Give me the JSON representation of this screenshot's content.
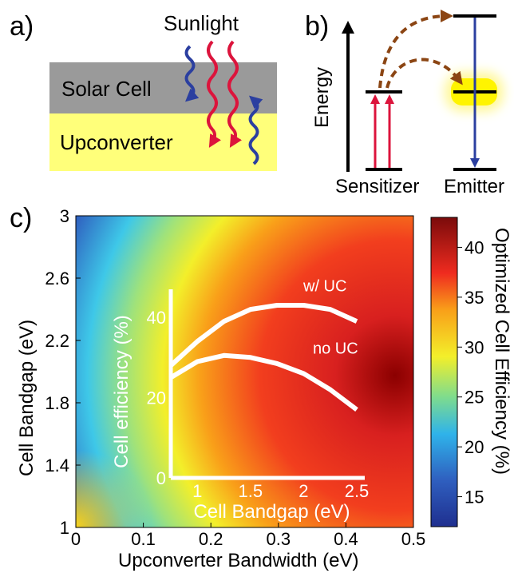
{
  "panel_a": {
    "letter": "a)",
    "sunlight_label": "Sunlight",
    "solar_cell_label": "Solar Cell",
    "upconverter_label": "Upconverter"
  },
  "panel_b": {
    "letter": "b)",
    "energy_label": "Energy",
    "sensitizer_label": "Sensitizer",
    "emitter_label": "Emitter"
  },
  "panel_c": {
    "letter": "c)",
    "xlabel": "Upconverter Bandwidth (eV)",
    "ylabel": "Cell Bandgap (eV)",
    "colorbar_label": "Optimized Cell Efficiency (%)",
    "inset_xlabel": "Cell Bandgap (eV)",
    "inset_ylabel": "Cell efficiency (%)",
    "inset_series_label_uc": "w/ UC",
    "inset_series_label_no_uc": "no UC"
  },
  "colors": {
    "red_photon": "#dc143c",
    "blue_photon": "#2b3fa0",
    "solar_cell": "#9a9a9a",
    "upconverter": "#ffff7a",
    "transfer_arrow": "#8b4513",
    "emitter_glow": "#fff400"
  },
  "chart_data": [
    {
      "type": "heatmap",
      "xlabel": "Upconverter Bandwidth (eV)",
      "ylabel": "Cell Bandgap (eV)",
      "xlim": [
        0,
        0.5
      ],
      "ylim": [
        1,
        3
      ],
      "x_ticks": [
        "0",
        "0.1",
        "0.2",
        "0.3",
        "0.4",
        "0.5"
      ],
      "y_ticks": [
        "1",
        "1.4",
        "1.8",
        "2.2",
        "2.6",
        "3"
      ],
      "colorbar": {
        "label": "Optimized Cell Efficiency (%)",
        "range": [
          12,
          43
        ],
        "ticks": [
          "15",
          "20",
          "25",
          "30",
          "35",
          "40"
        ]
      }
    },
    {
      "type": "line",
      "xlabel": "Cell Bandgap (eV)",
      "ylabel": "Cell efficiency (%)",
      "xlim": [
        0.75,
        2.5
      ],
      "ylim": [
        0,
        45
      ],
      "x_ticks": [
        "1",
        "1.5",
        "2",
        "2.5"
      ],
      "y_ticks": [
        "0",
        "20",
        "40"
      ],
      "series": [
        {
          "name": "w/ UC",
          "x": [
            0.75,
            1.0,
            1.25,
            1.5,
            1.75,
            2.0,
            2.25,
            2.5
          ],
          "values": [
            28,
            34,
            39,
            42,
            43,
            43,
            42,
            39
          ]
        },
        {
          "name": "no UC",
          "x": [
            0.75,
            1.0,
            1.25,
            1.5,
            1.75,
            2.0,
            2.25,
            2.5
          ],
          "values": [
            25,
            29,
            30.5,
            30,
            28.5,
            26,
            22,
            17
          ]
        }
      ]
    }
  ]
}
